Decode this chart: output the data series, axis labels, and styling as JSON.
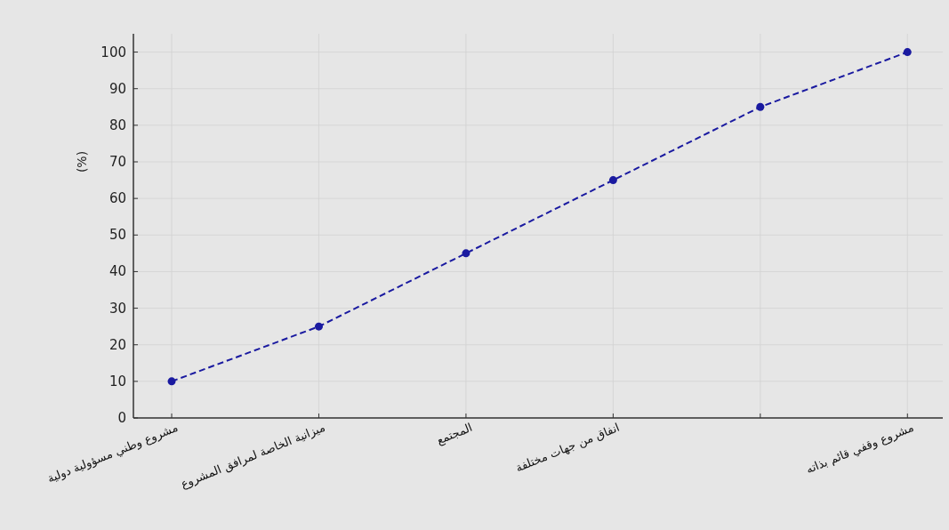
{
  "chart_data": {
    "type": "line",
    "ylabel": "(%)",
    "categories": [
      "مشروع وطني مسؤولية دولية",
      "ميزانية الخاصة لمرافق المشروع",
      "المجتمع",
      "انفاق من جهات مختلفة",
      null,
      "مشروع وقفي قائم بذاته"
    ],
    "series": [
      {
        "color": "#1a1aa0",
        "values": [
          10,
          25,
          45,
          65,
          85,
          100
        ]
      }
    ],
    "ylim": [
      0,
      105
    ],
    "yticks": [
      0,
      10,
      20,
      30,
      40,
      50,
      60,
      70,
      80,
      90,
      100
    ],
    "grid": true,
    "marker": "circle",
    "line_style": "dashed"
  }
}
